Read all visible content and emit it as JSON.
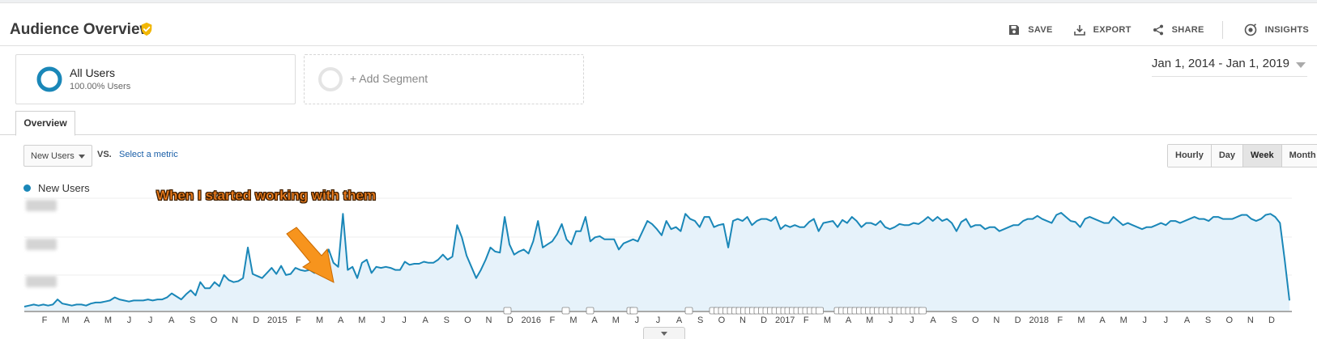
{
  "header": {
    "title": "Audience Overview",
    "actions": [
      {
        "label": "SAVE",
        "icon": "save-icon"
      },
      {
        "label": "EXPORT",
        "icon": "export-icon"
      },
      {
        "label": "SHARE",
        "icon": "share-icon"
      },
      {
        "label": "INSIGHTS",
        "icon": "insights-icon"
      }
    ]
  },
  "segments": {
    "primary": {
      "name": "All Users",
      "share": "100.00% Users"
    },
    "add_label": "+ Add Segment"
  },
  "date_range": "Jan 1, 2014 - Jan 1, 2019",
  "tabs": {
    "overview": "Overview"
  },
  "metric": {
    "selected": "New Users",
    "vs": "VS.",
    "select_metric": "Select a metric"
  },
  "granularity": {
    "options": [
      "Hourly",
      "Day",
      "Week",
      "Month"
    ],
    "active": "Week"
  },
  "legend": {
    "series_name": "New Users"
  },
  "annotation_text": "When I started working with them",
  "colors": {
    "series": "#1a87b8",
    "fill": "#e6f2fa",
    "annotation": "#f58220"
  },
  "chart_data": {
    "type": "area",
    "series": [
      {
        "name": "New Users"
      }
    ],
    "x_axis_labels": [
      "F",
      "M",
      "A",
      "M",
      "J",
      "J",
      "A",
      "S",
      "O",
      "N",
      "D",
      "2015",
      "F",
      "M",
      "A",
      "M",
      "J",
      "J",
      "A",
      "S",
      "O",
      "N",
      "D",
      "2016",
      "F",
      "M",
      "A",
      "M",
      "J",
      "J",
      "A",
      "S",
      "O",
      "N",
      "D",
      "2017",
      "F",
      "M",
      "A",
      "M",
      "J",
      "J",
      "A",
      "S",
      "O",
      "N",
      "D",
      "2018",
      "F",
      "M",
      "A",
      "M",
      "J",
      "J",
      "A",
      "S",
      "O",
      "N",
      "D"
    ],
    "y_tick_labels_obscured": true,
    "y_values_relative": [
      4,
      5,
      6,
      5,
      6,
      5,
      6,
      11,
      7,
      6,
      5,
      6,
      6,
      5,
      7,
      8,
      8,
      9,
      10,
      13,
      11,
      10,
      9,
      10,
      10,
      10,
      11,
      10,
      11,
      11,
      13,
      17,
      14,
      11,
      16,
      20,
      15,
      28,
      22,
      22,
      28,
      24,
      35,
      30,
      28,
      29,
      32,
      62,
      36,
      34,
      32,
      37,
      42,
      36,
      44,
      35,
      36,
      42,
      40,
      39,
      40,
      37,
      42,
      47,
      60,
      47,
      43,
      95,
      40,
      43,
      32,
      47,
      50,
      37,
      43,
      42,
      43,
      42,
      40,
      40,
      48,
      45,
      46,
      46,
      48,
      47,
      47,
      50,
      55,
      50,
      53,
      84,
      72,
      54,
      43,
      32,
      40,
      50,
      62,
      58,
      57,
      92,
      65,
      55,
      58,
      60,
      56,
      68,
      88,
      62,
      65,
      68,
      75,
      85,
      70,
      65,
      78,
      78,
      92,
      68,
      72,
      73,
      70,
      70,
      70,
      60,
      66,
      68,
      70,
      68,
      78,
      88,
      85,
      80,
      74,
      88,
      80,
      82,
      78,
      95,
      90,
      88,
      82,
      92,
      92,
      82,
      84,
      85,
      62,
      88,
      90,
      88,
      92,
      84,
      88,
      90,
      90,
      88,
      92,
      80,
      84,
      82,
      84,
      82,
      82,
      87,
      90,
      78,
      86,
      87,
      88,
      82,
      89,
      86,
      92,
      88,
      82,
      86,
      86,
      84,
      88,
      82,
      80,
      82,
      85,
      84,
      84,
      86,
      85,
      88,
      92,
      88,
      92,
      88,
      90,
      86,
      78,
      87,
      90,
      82,
      84,
      84,
      80,
      82,
      82,
      78,
      80,
      82,
      84,
      84,
      88,
      90,
      90,
      93,
      90,
      88,
      86,
      94,
      96,
      92,
      88,
      87,
      82,
      90,
      92,
      90,
      88,
      86,
      86,
      92,
      88,
      84,
      86,
      84,
      82,
      80,
      82,
      82,
      84,
      86,
      84,
      88,
      88,
      86,
      88,
      90,
      92,
      90,
      90,
      88,
      92,
      92,
      90,
      90,
      90,
      92,
      94,
      94,
      90,
      88,
      90,
      94,
      95,
      92,
      86,
      50,
      10
    ]
  }
}
